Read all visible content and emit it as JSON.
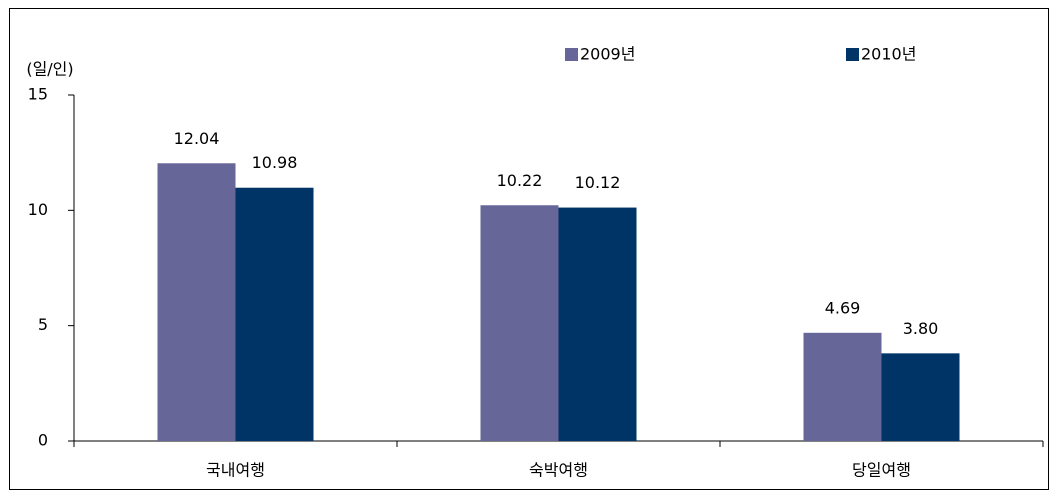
{
  "chart_data": {
    "type": "bar",
    "y_unit": "(일/인)",
    "categories": [
      "국내여행",
      "숙박여행",
      "당일여행"
    ],
    "series": [
      {
        "name": "2009년",
        "color": "#666699",
        "values": [
          12.04,
          10.22,
          4.69
        ],
        "value_labels": [
          "12.04",
          "10.22",
          "4.69"
        ]
      },
      {
        "name": "2010년",
        "color": "#003366",
        "values": [
          10.98,
          10.12,
          3.8
        ],
        "value_labels": [
          "10.98",
          "10.12",
          "3.80"
        ]
      }
    ],
    "ylim": [
      0,
      15
    ],
    "yticks": [
      0,
      5,
      10,
      15
    ],
    "grid": false,
    "legend": "top-right"
  }
}
